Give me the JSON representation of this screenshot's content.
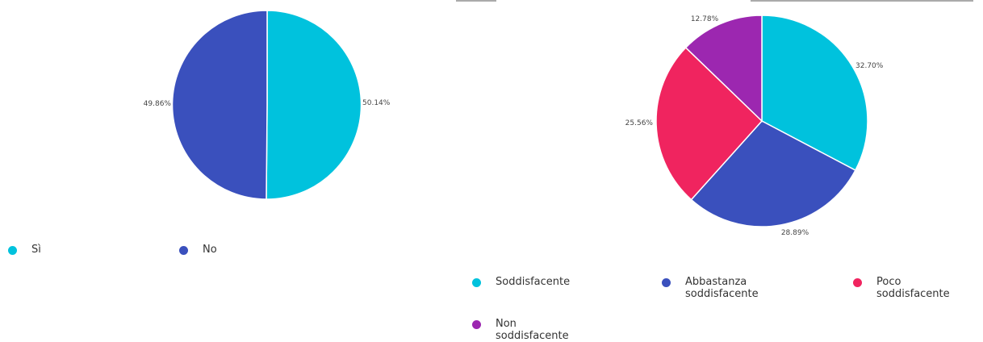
{
  "chart_data": [
    {
      "type": "pie",
      "categories": [
        "Sì",
        "No"
      ],
      "values": [
        50.14,
        49.86
      ],
      "value_labels": [
        "50.14%",
        "49.86%"
      ],
      "colors": [
        "#00c2dd",
        "#3a50bd"
      ],
      "legend_position": "bottom"
    },
    {
      "type": "pie",
      "categories": [
        "Soddisfacente",
        "Abbastanza soddisfacente",
        "Poco soddisfacente",
        "Non soddisfacente"
      ],
      "values": [
        32.7,
        28.89,
        25.56,
        12.78
      ],
      "value_labels": [
        "32.70%",
        "28.89%",
        "25.56%",
        "12.78%"
      ],
      "colors": [
        "#00c2dd",
        "#3a50bd",
        "#f0245f",
        "#9c27b0"
      ],
      "legend_position": "bottom"
    }
  ]
}
